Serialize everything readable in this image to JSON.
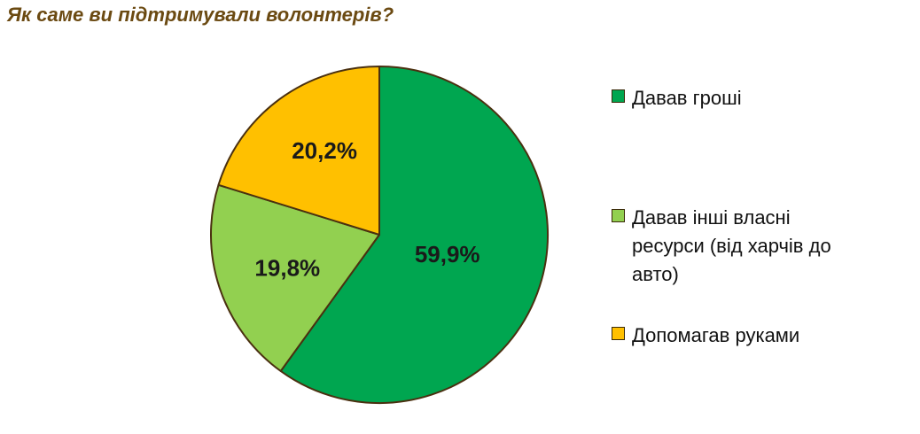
{
  "chart_data": {
    "type": "pie",
    "title": "Як саме ви підтримували волонтерів?",
    "slices": [
      {
        "label": "Давав гроші",
        "value": 59.9,
        "value_label": "59,9%",
        "color": "#00a650"
      },
      {
        "label": "Давав інші власні ресурси (від харчів до авто)",
        "value": 19.8,
        "value_label": "19,8%",
        "color": "#92d050"
      },
      {
        "label": "Допомагав руками",
        "value": 20.2,
        "value_label": "20,2%",
        "color": "#ffc000"
      }
    ],
    "start_angle": "12 o'clock",
    "direction": "clockwise",
    "legend_position": "right"
  },
  "colors": {
    "title": "#6b4a12",
    "slice_border": "#4a3010",
    "label_text": "#1a1a1a"
  }
}
